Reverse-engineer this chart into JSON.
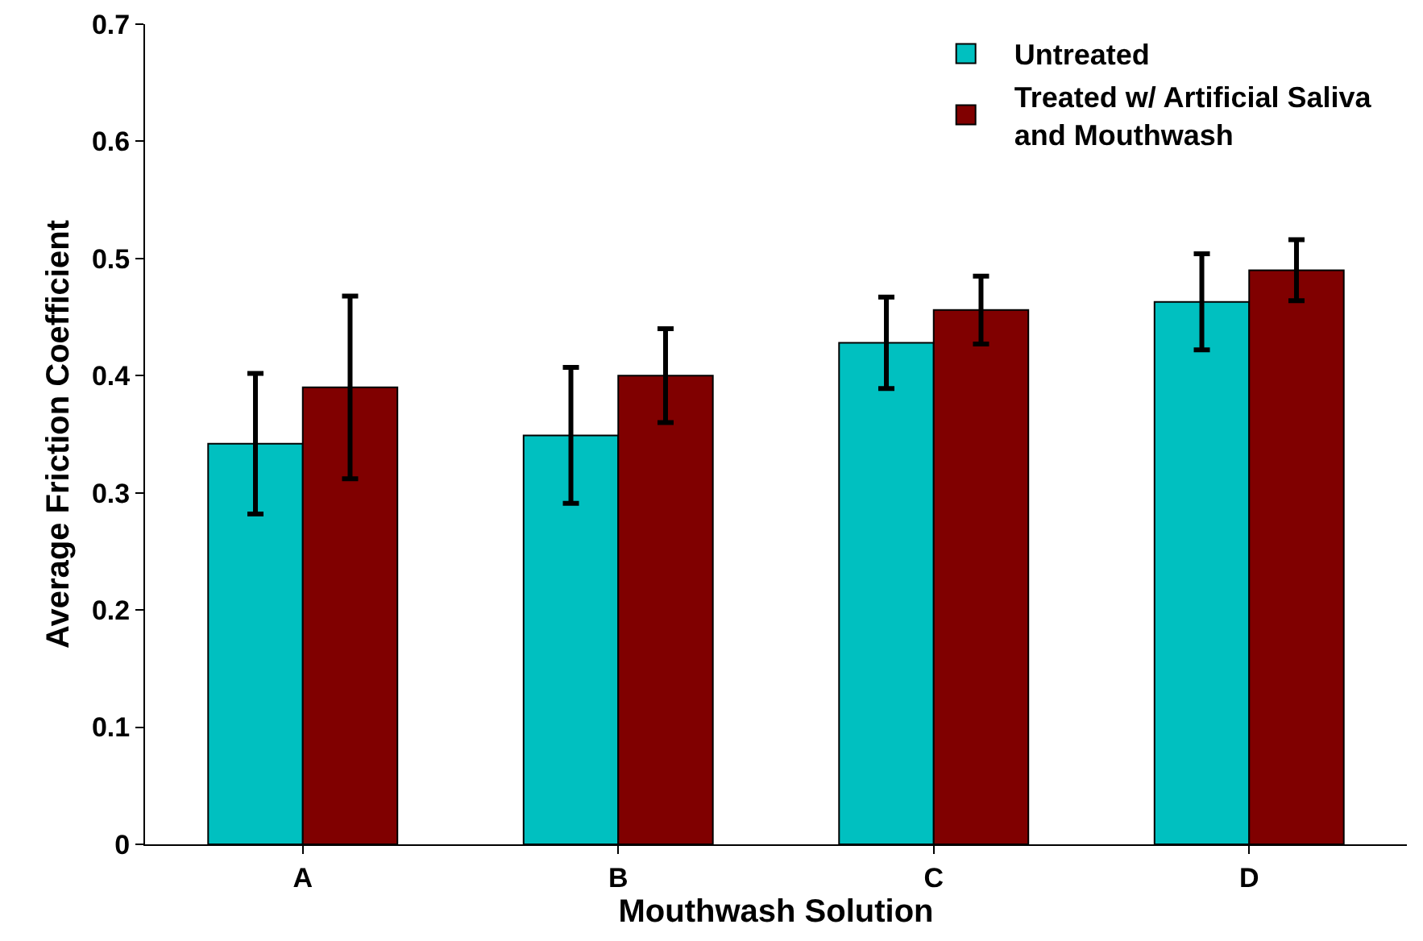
{
  "chart_data": {
    "type": "bar",
    "xlabel": "Mouthwash Solution",
    "ylabel": "Average Friction Coefficient",
    "categories": [
      "A",
      "B",
      "C",
      "D"
    ],
    "series": [
      {
        "name": "Untreated",
        "color": "#00c0c0",
        "values": [
          0.342,
          0.349,
          0.428,
          0.463
        ],
        "errors": [
          0.06,
          0.058,
          0.039,
          0.041
        ]
      },
      {
        "name": "Treated w/ Artificial Saliva and Mouthwash",
        "color": "#800000",
        "values": [
          0.39,
          0.4,
          0.456,
          0.49
        ],
        "errors": [
          0.078,
          0.04,
          0.029,
          0.026
        ]
      }
    ],
    "ylim": [
      0,
      0.7
    ],
    "yticks": [
      {
        "value": 0,
        "label": "0"
      },
      0.1,
      0.2,
      0.3,
      0.4,
      0.5,
      0.6,
      0.7
    ],
    "grid": false,
    "legend": "top right"
  }
}
